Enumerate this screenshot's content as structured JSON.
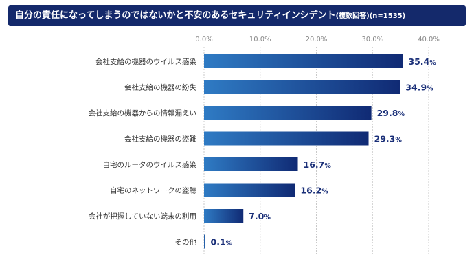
{
  "chart_data": {
    "type": "bar",
    "orientation": "horizontal",
    "title": "自分の責任になってしまうのではないかと不安のあるセキュリティインシデント",
    "subtitle": "(複数回答)(n=1535)",
    "categories": [
      "会社支給の機器のウイルス感染",
      "会社支給の機器の紛失",
      "会社支給の機器からの情報漏えい",
      "会社支給の機器の盗難",
      "自宅のルータのウイルス感染",
      "自宅のネットワークの盗聴",
      "会社が把握していない端末の利用",
      "その他"
    ],
    "values": [
      35.4,
      34.9,
      29.8,
      29.3,
      16.7,
      16.2,
      7.0,
      0.1
    ],
    "value_labels": [
      "35.4",
      "34.9",
      "29.8",
      "29.3",
      "16.7",
      "16.2",
      "7.0",
      "0.1"
    ],
    "value_unit": "%",
    "xlim": [
      0,
      40
    ],
    "ticks": [
      0,
      10,
      20,
      30,
      40
    ],
    "tick_labels": [
      "0.0%",
      "10.0%",
      "20.0%",
      "30.0%",
      "40.0%"
    ],
    "axis_position": "top",
    "grid": true,
    "colors": {
      "title_bg": "#14296b",
      "bar_start": "#2f7bc4",
      "bar_end": "#102a74",
      "value_label": "#1a2f78",
      "grid": "#c9c9c9",
      "tick_label": "#888888",
      "category_label": "#333333"
    }
  }
}
